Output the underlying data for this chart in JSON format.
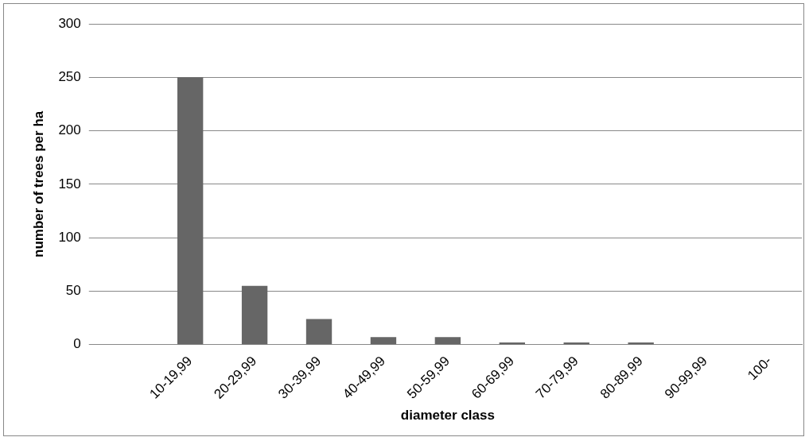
{
  "chart_data": {
    "type": "bar",
    "xlabel": "diameter class",
    "ylabel": "number of trees per ha",
    "categories": [
      null,
      "10-19,99",
      "20-29,99",
      "30-39,99",
      "40-49,99",
      "50-59,99",
      "60-69,99",
      "70-79,99",
      "80-89,99",
      "90-99,99",
      "100-"
    ],
    "values": [
      null,
      250,
      55,
      24,
      7,
      7,
      2,
      2,
      2,
      0,
      0
    ],
    "color": "#666666",
    "ylim": [
      0,
      300
    ],
    "yticks": [
      0,
      50,
      100,
      150,
      200,
      250,
      300
    ],
    "grid": "y",
    "legend": false
  }
}
